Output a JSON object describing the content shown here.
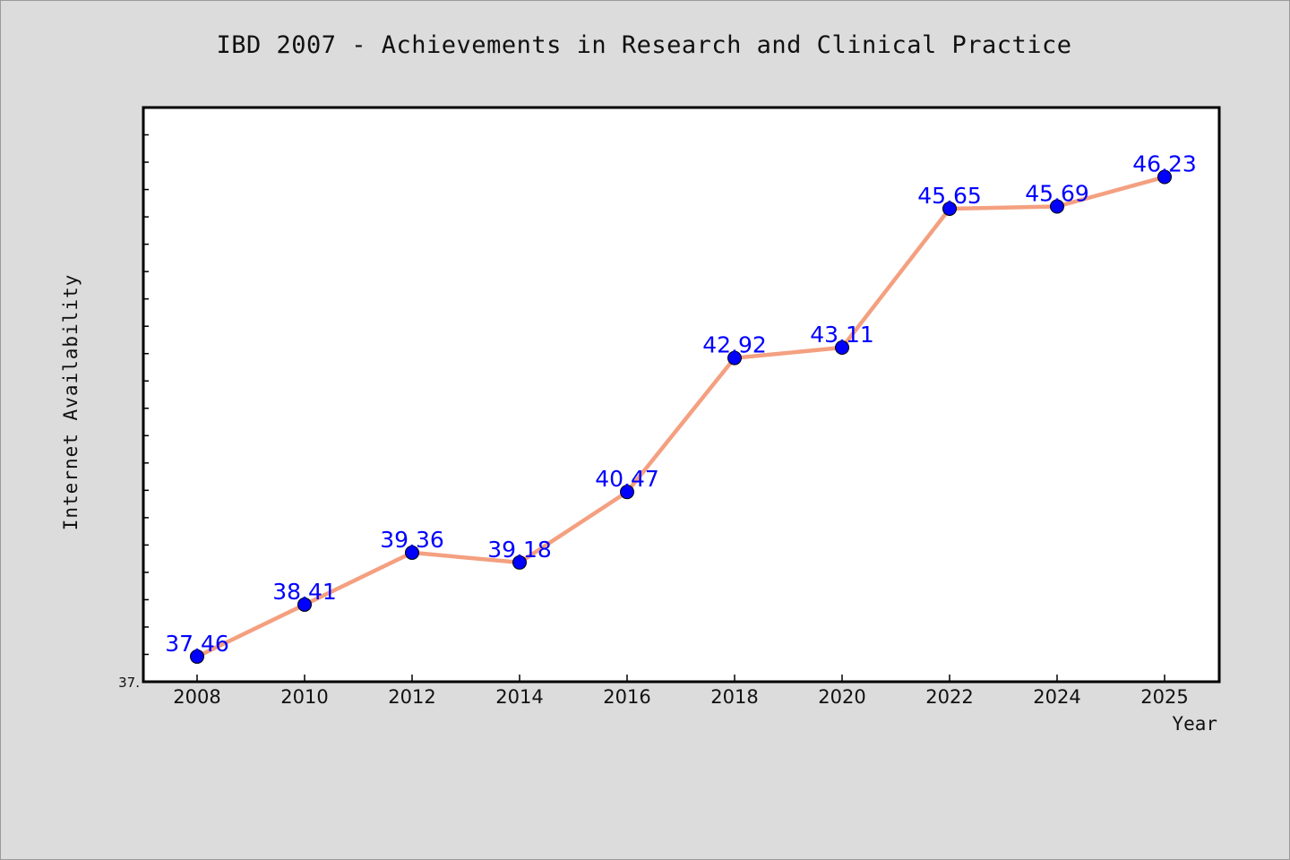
{
  "chart_data": {
    "type": "line",
    "title": "IBD 2007 - Achievements in Research and Clinical Practice",
    "xlabel": "Year",
    "ylabel": "Internet Availability",
    "x": [
      "2008",
      "2010",
      "2012",
      "2014",
      "2016",
      "2018",
      "2020",
      "2022",
      "2024",
      "2025"
    ],
    "series": [
      {
        "values": [
          37.46,
          38.41,
          39.36,
          39.18,
          40.47,
          42.92,
          43.11,
          45.65,
          45.69,
          46.23
        ],
        "labels": [
          "37.46",
          "38.41",
          "39.36",
          "39.18",
          "40.47",
          "42.92",
          "43.11",
          "45.65",
          "45.69",
          "46.23"
        ]
      }
    ],
    "ylim": [
      37.0,
      47.5
    ],
    "y_min_label": "37.",
    "grid": false,
    "colors": {
      "line": "#f4a080",
      "marker": "#0000ff",
      "label": "#0000ff",
      "plot_bg": "#ffffff",
      "page_bg": "#dcdcdc"
    }
  }
}
